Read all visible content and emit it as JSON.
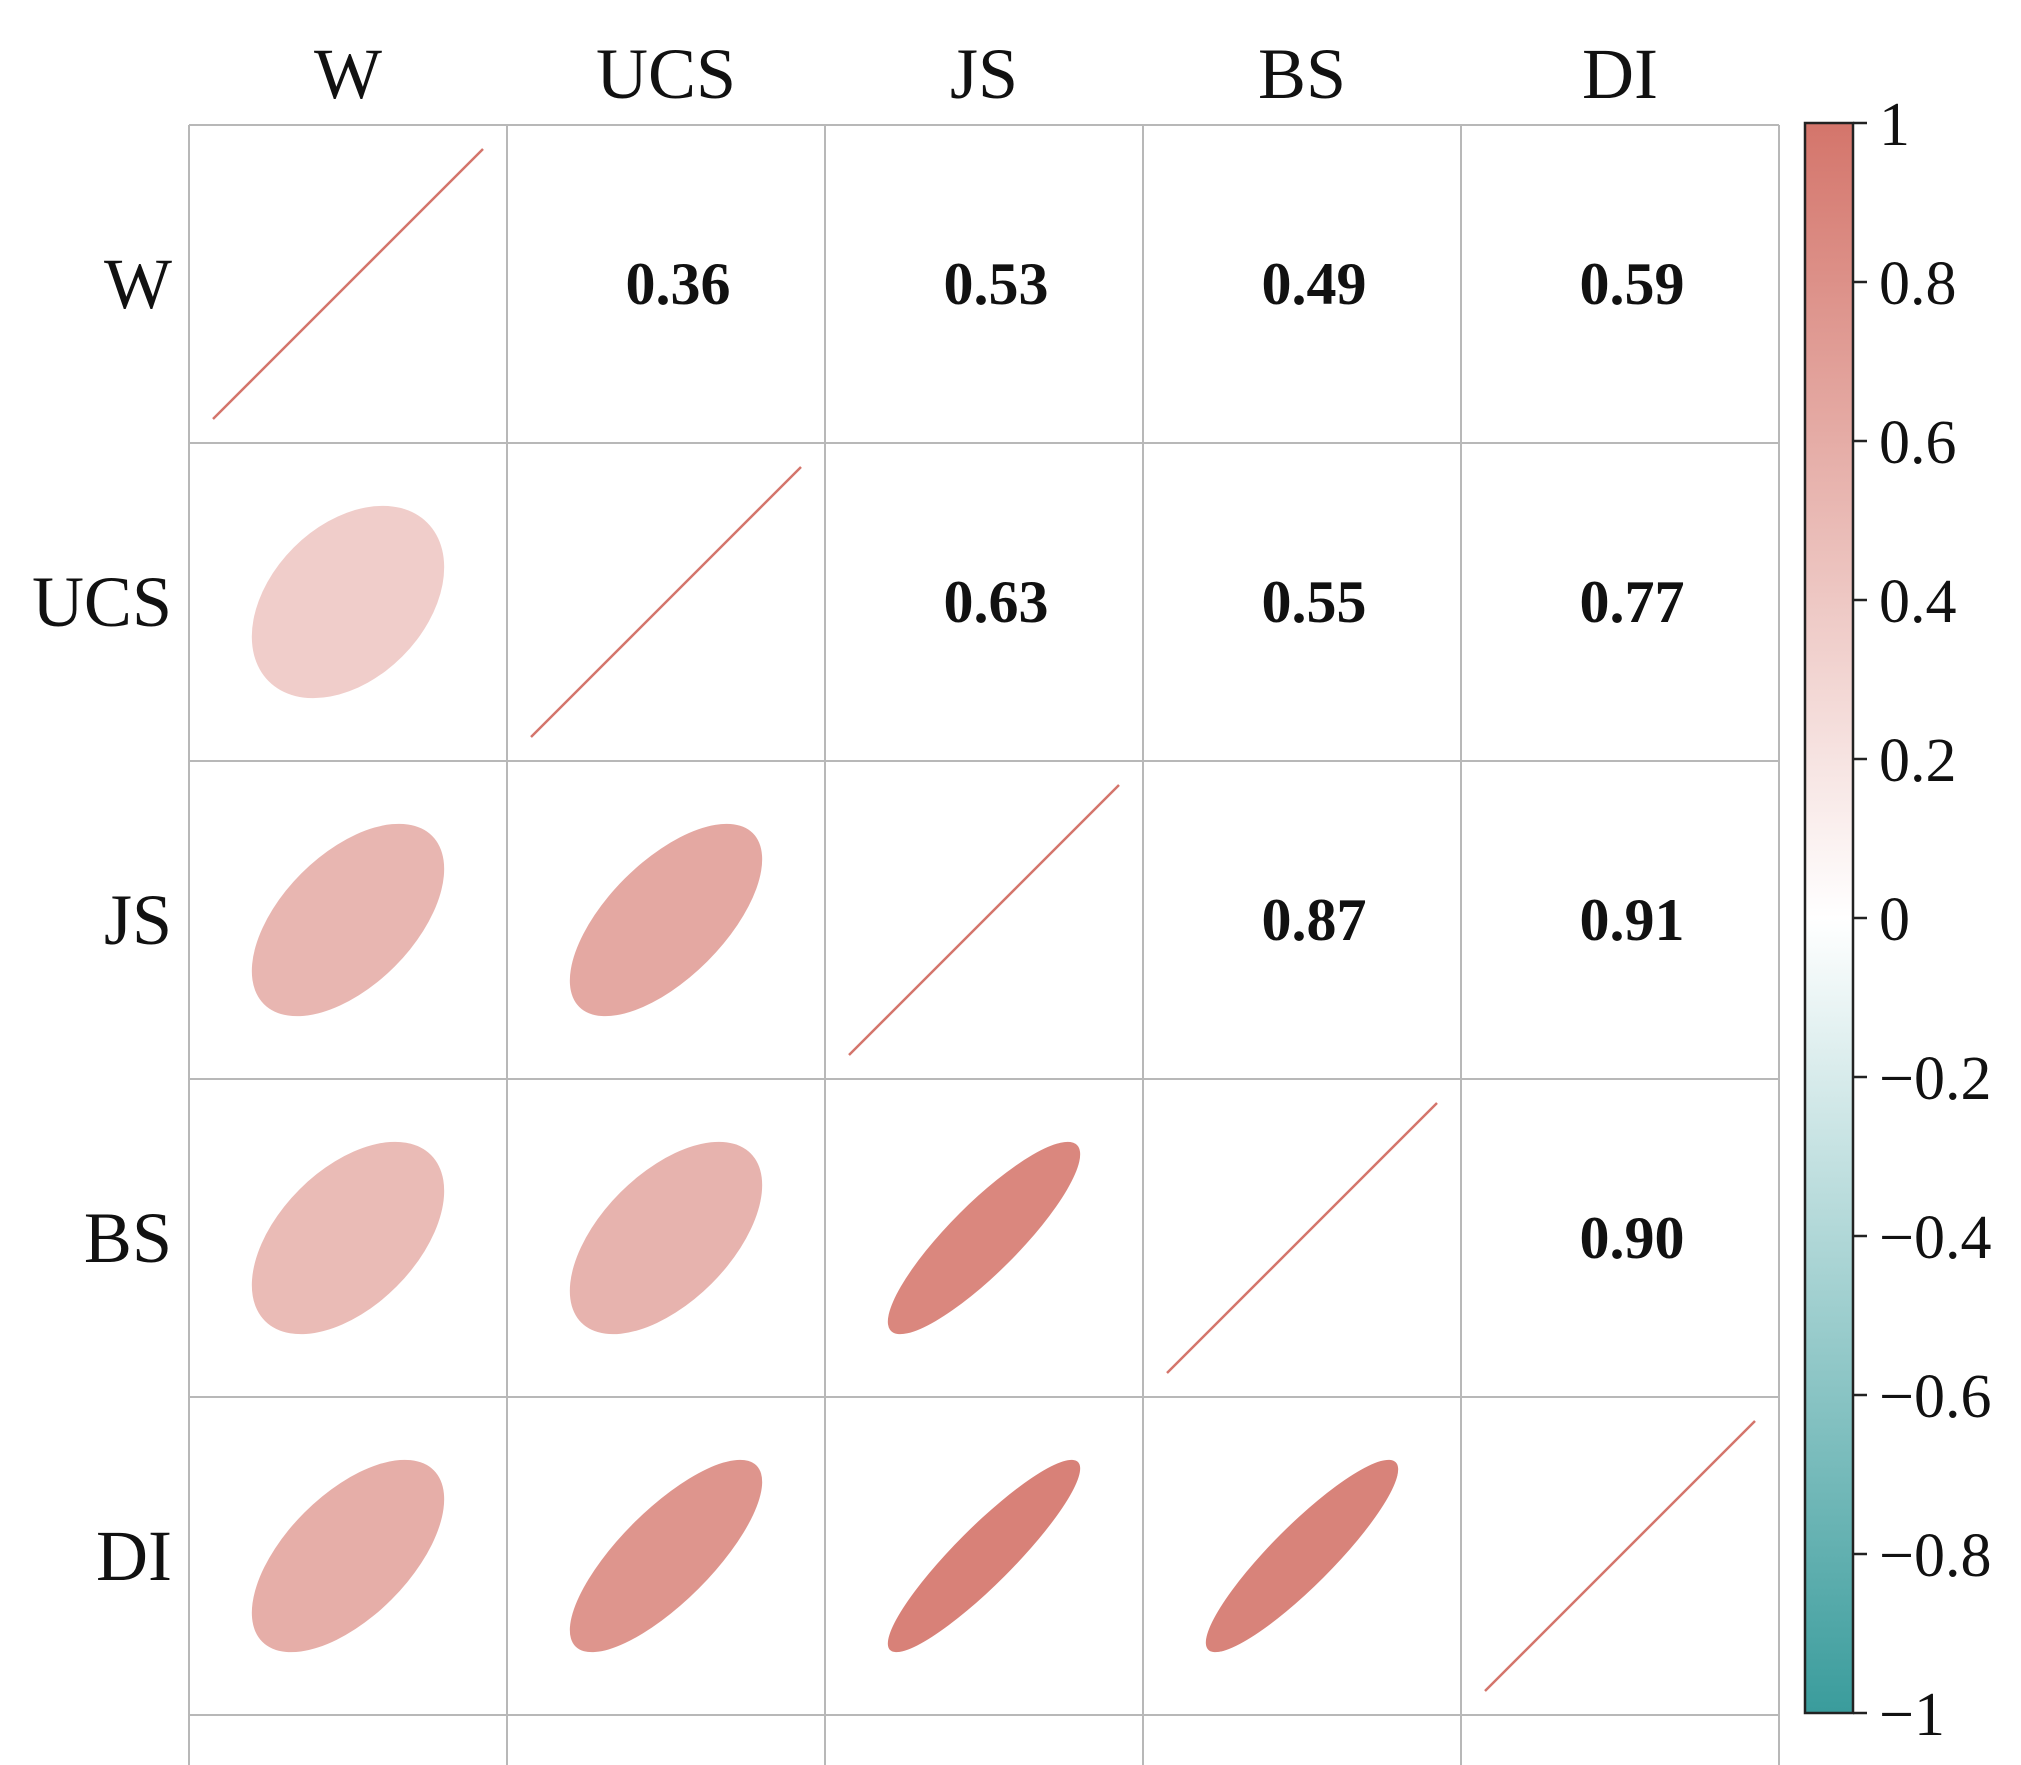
{
  "chart_data": {
    "type": "heatmap",
    "subtype": "correlation-ellipse-matrix",
    "variables": [
      "W",
      "UCS",
      "JS",
      "BS",
      "DI"
    ],
    "matrix": [
      [
        1.0,
        0.36,
        0.53,
        0.49,
        0.59
      ],
      [
        0.36,
        1.0,
        0.63,
        0.55,
        0.77
      ],
      [
        0.53,
        0.63,
        1.0,
        0.87,
        0.91
      ],
      [
        0.49,
        0.55,
        0.87,
        1.0,
        0.9
      ],
      [
        0.59,
        0.77,
        0.91,
        0.9,
        1.0
      ]
    ],
    "upper_labels": {
      "W-UCS": "0.36",
      "W-JS": "0.53",
      "W-BS": "0.49",
      "W-DI": "0.59",
      "UCS-JS": "0.63",
      "UCS-BS": "0.55",
      "UCS-DI": "0.77",
      "JS-BS": "0.87",
      "JS-DI": "0.91",
      "BS-DI": "0.90"
    },
    "colorbar": {
      "range": [
        -1,
        1
      ],
      "ticks": [
        "1",
        "0.8",
        "0.6",
        "0.4",
        "0.2",
        "0",
        "−0.2",
        "−0.4",
        "−0.6",
        "−0.8",
        "−1"
      ],
      "colors": {
        "positive": "#d4756b",
        "zero": "#ffffff",
        "negative": "#3a9c9c"
      }
    },
    "grid_color": "#b8b8b8"
  }
}
